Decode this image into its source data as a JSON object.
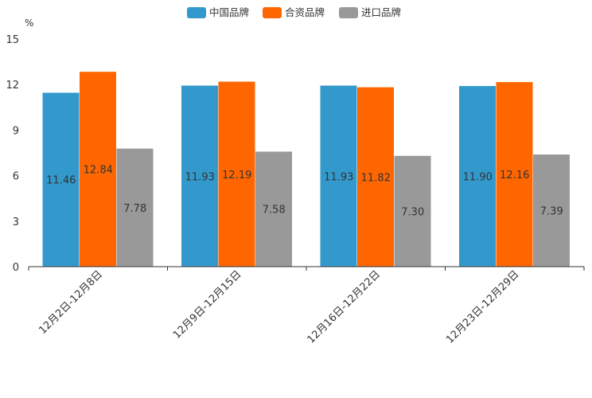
{
  "chart_data": {
    "type": "bar",
    "unit_label": "%",
    "categories": [
      "12月2日-12月8日",
      "12月9日-12月15日",
      "12月16日-12月22日",
      "12月23日-12月29日"
    ],
    "series": [
      {
        "name": "中国品牌",
        "color": "#3399CC",
        "values": [
          11.46,
          11.93,
          11.93,
          11.9
        ],
        "labels": [
          "11.46",
          "11.93",
          "11.93",
          "11.90"
        ]
      },
      {
        "name": "合资品牌",
        "color": "#FF6600",
        "values": [
          12.84,
          12.19,
          11.82,
          12.16
        ],
        "labels": [
          "12.84",
          "12.19",
          "11.82",
          "12.16"
        ]
      },
      {
        "name": "进口品牌",
        "color": "#999999",
        "values": [
          7.78,
          7.58,
          7.3,
          7.39
        ],
        "labels": [
          "7.78",
          "7.58",
          "7.30",
          "7.39"
        ]
      }
    ],
    "y_ticks": [
      "0",
      "3",
      "6",
      "9",
      "12",
      "15"
    ],
    "ylim": [
      0,
      15
    ],
    "legend_position": "top-center",
    "grid": false
  }
}
